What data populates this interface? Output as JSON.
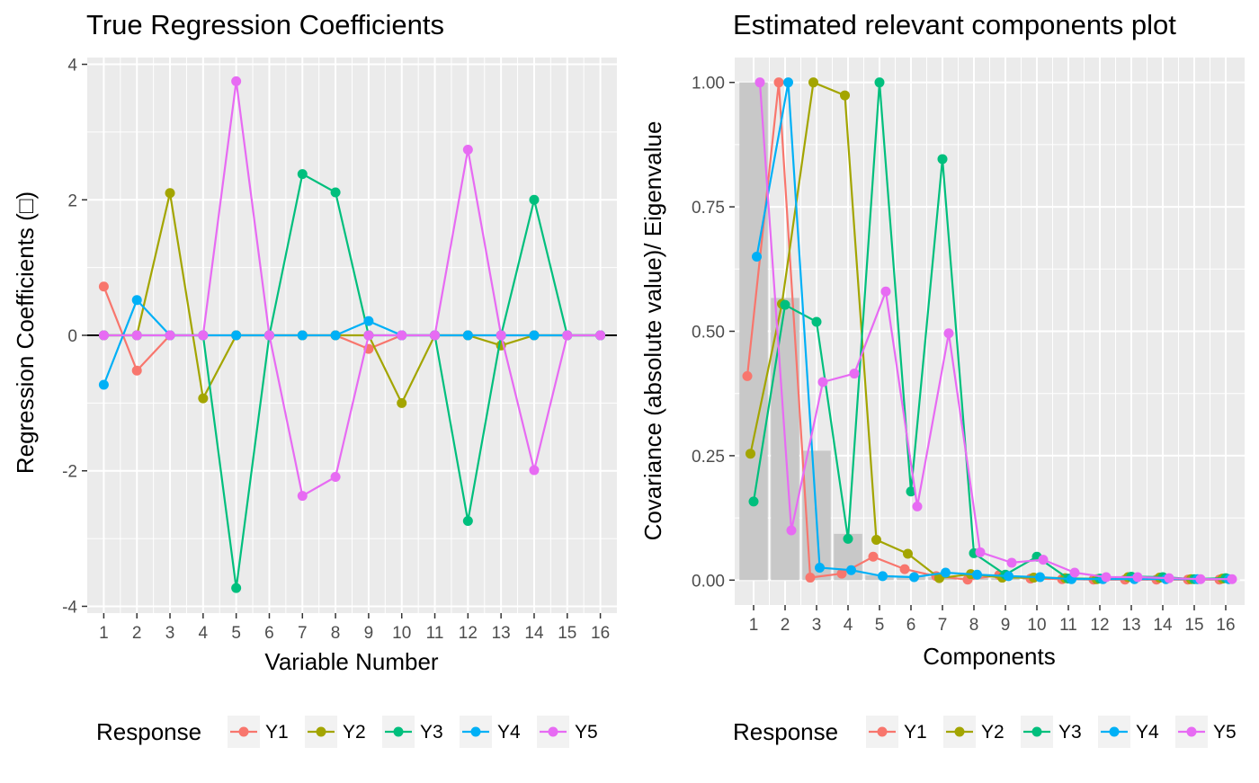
{
  "response_label": "Response",
  "colors": {
    "panel_bg": "#EBEBEB",
    "grid": "#FFFFFF",
    "bar": "#C8C8C8",
    "zero_line": "#000000"
  },
  "series": [
    {
      "name": "Y1",
      "color": "#F8766D"
    },
    {
      "name": "Y2",
      "color": "#A3A500"
    },
    {
      "name": "Y3",
      "color": "#00BF7D"
    },
    {
      "name": "Y4",
      "color": "#00B0F6"
    },
    {
      "name": "Y5",
      "color": "#E76BF3"
    }
  ],
  "chart_data": [
    {
      "type": "line",
      "title": "True Regression Coefficients",
      "xlabel": "Variable Number",
      "ylabel": "Regression Coefficients (□)",
      "x": [
        1,
        2,
        3,
        4,
        5,
        6,
        7,
        8,
        9,
        10,
        11,
        12,
        13,
        14,
        15,
        16
      ],
      "xlim": [
        0.5,
        16.5
      ],
      "ylim": [
        -4.1,
        4.1
      ],
      "yticks": [
        -4,
        -2,
        0,
        2,
        4
      ],
      "ytick_labels": [
        "-4",
        "-2",
        "0",
        "2",
        "4"
      ],
      "grid": true,
      "zero_line": true,
      "legend_position": "bottom",
      "series": [
        {
          "name": "Y1",
          "values": [
            0.72,
            -0.52,
            0,
            0,
            0,
            0,
            0,
            0,
            -0.2,
            0,
            0,
            0,
            0,
            0,
            0,
            0
          ]
        },
        {
          "name": "Y2",
          "values": [
            0,
            0,
            2.1,
            -0.93,
            0,
            0,
            0,
            0,
            0,
            -1.0,
            0,
            0,
            -0.15,
            0,
            0,
            0
          ]
        },
        {
          "name": "Y3",
          "values": [
            0,
            0,
            0,
            0,
            -3.73,
            0,
            2.38,
            2.11,
            0,
            0,
            0,
            -2.74,
            0,
            2.0,
            0,
            0
          ]
        },
        {
          "name": "Y4",
          "values": [
            -0.73,
            0.52,
            0,
            0,
            0,
            0,
            0,
            0,
            0.21,
            0,
            0,
            0,
            0,
            0,
            0,
            0
          ]
        },
        {
          "name": "Y5",
          "values": [
            0,
            0,
            0,
            0,
            3.75,
            0,
            -2.37,
            -2.09,
            0,
            0,
            0,
            2.74,
            0,
            -1.99,
            0,
            0
          ]
        }
      ]
    },
    {
      "type": "line",
      "title": "Estimated relevant components plot",
      "xlabel": "Components",
      "ylabel": "Covariance (absolute value)/ Eigenvalue",
      "x": [
        1,
        2,
        3,
        4,
        5,
        6,
        7,
        8,
        9,
        10,
        11,
        12,
        13,
        14,
        15,
        16
      ],
      "xlim": [
        0.4,
        16.6
      ],
      "ylim": [
        -0.05,
        1.05
      ],
      "yticks": [
        0,
        0.25,
        0.5,
        0.75,
        1.0
      ],
      "ytick_labels": [
        "0.00",
        "0.25",
        "0.50",
        "0.75",
        "1.00"
      ],
      "grid": true,
      "legend_position": "bottom",
      "eigenvalues": [
        1.0,
        0.567,
        0.26,
        0.093,
        0.01,
        0.008,
        0.006,
        0.005,
        0.004,
        0.003,
        0.002,
        0.002,
        0.001,
        0.001,
        0.001,
        0.001
      ],
      "series": [
        {
          "name": "Y1",
          "values": [
            0.41,
            1.0,
            0.005,
            0.013,
            0.047,
            0.022,
            0.008,
            0.001,
            0.01,
            0.003,
            0.002,
            0.001,
            0.001,
            0.001,
            0.001,
            0.001
          ]
        },
        {
          "name": "Y2",
          "values": [
            0.254,
            0.555,
            1.0,
            0.974,
            0.081,
            0.053,
            0.004,
            0.012,
            0.005,
            0.005,
            0.004,
            0.002,
            0.006,
            0.005,
            0.002,
            0.003
          ]
        },
        {
          "name": "Y3",
          "values": [
            0.158,
            0.553,
            0.519,
            0.083,
            1.0,
            0.178,
            0.846,
            0.054,
            0.011,
            0.047,
            0.003,
            0.003,
            0.007,
            0.006,
            0.002,
            0.004
          ]
        },
        {
          "name": "Y4",
          "values": [
            0.65,
            1.0,
            0.025,
            0.02,
            0.008,
            0.006,
            0.015,
            0.011,
            0.008,
            0.006,
            0.002,
            0.002,
            0.002,
            0.002,
            0.002,
            0.002
          ]
        },
        {
          "name": "Y5",
          "values": [
            1.0,
            0.1,
            0.398,
            0.415,
            0.58,
            0.148,
            0.496,
            0.056,
            0.035,
            0.041,
            0.015,
            0.006,
            0.006,
            0.004,
            0.002,
            0.002
          ]
        }
      ]
    }
  ]
}
